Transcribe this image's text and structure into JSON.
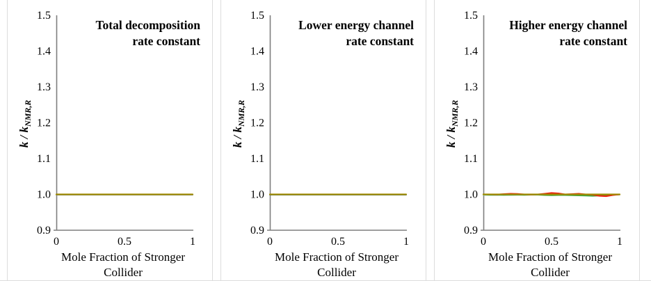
{
  "page": {
    "background": "#ffffff",
    "panel_border_color": "#dcdcdc",
    "axis_color": "#7f7f7f",
    "text_color": "#000000"
  },
  "chart_data": [
    {
      "type": "line",
      "title": "Total decomposition rate constant",
      "title_lines": [
        "Total decomposition",
        "rate constant"
      ],
      "ylabel": "k / k_NMR,R",
      "ylabel_main": "k / k",
      "ylabel_sub": "NMR,R",
      "xlabel": "Mole Fraction of Stronger Collider",
      "xlabel_lines": [
        "Mole Fraction of Stronger",
        "Collider"
      ],
      "ytick_labels": [
        "1.5",
        "1.4",
        "1.3",
        "1.2",
        "1.1",
        "1.0",
        "0.9"
      ],
      "xtick_labels": [
        "0",
        "0.5",
        "1"
      ],
      "xlim": [
        0,
        1
      ],
      "ylim": [
        0.9,
        1.5
      ],
      "grid": false,
      "legend": "none",
      "x": [
        0,
        0.05,
        0.1,
        0.15,
        0.2,
        0.25,
        0.3,
        0.35,
        0.4,
        0.45,
        0.5,
        0.55,
        0.6,
        0.65,
        0.7,
        0.75,
        0.8,
        0.85,
        0.9,
        0.95,
        1
      ],
      "series": [
        {
          "name": "gray-blue",
          "color": "#7b8fa8",
          "width": 2,
          "values": [
            0.999,
            0.999,
            0.999,
            0.999,
            0.999,
            0.999,
            0.999,
            0.999,
            0.999,
            0.999,
            0.999,
            0.999,
            0.999,
            0.999,
            0.999,
            0.999,
            0.999,
            0.999,
            0.999,
            0.999,
            0.999
          ]
        },
        {
          "name": "dark-yellow",
          "color": "#a18a00",
          "width": 2.2,
          "values": [
            1.0,
            1.0,
            1.0,
            1.0,
            1.0,
            1.0,
            1.0,
            1.0,
            1.0,
            1.0,
            1.0,
            1.0,
            1.0,
            1.0,
            1.0,
            1.0,
            1.0,
            1.0,
            1.0,
            1.0,
            1.0
          ]
        }
      ]
    },
    {
      "type": "line",
      "title": "Lower energy channel rate constant",
      "title_lines": [
        "Lower energy channel",
        "rate constant"
      ],
      "ylabel": "k / k_NMR,R",
      "ylabel_main": "k / k",
      "ylabel_sub": "NMR,R",
      "xlabel": "Mole Fraction of Stronger Collider",
      "xlabel_lines": [
        "Mole Fraction of Stronger",
        "Collider"
      ],
      "ytick_labels": [
        "1.5",
        "1.4",
        "1.3",
        "1.2",
        "1.1",
        "1.0",
        "0.9"
      ],
      "xtick_labels": [
        "0",
        "0.5",
        "1"
      ],
      "xlim": [
        0,
        1
      ],
      "ylim": [
        0.9,
        1.5
      ],
      "grid": false,
      "legend": "none",
      "x": [
        0,
        0.05,
        0.1,
        0.15,
        0.2,
        0.25,
        0.3,
        0.35,
        0.4,
        0.45,
        0.5,
        0.55,
        0.6,
        0.65,
        0.7,
        0.75,
        0.8,
        0.85,
        0.9,
        0.95,
        1
      ],
      "series": [
        {
          "name": "teal-blue",
          "color": "#4e7f95",
          "width": 2,
          "values": [
            0.999,
            0.999,
            0.999,
            0.999,
            0.999,
            0.999,
            0.999,
            0.999,
            0.999,
            0.999,
            0.999,
            0.999,
            0.999,
            0.999,
            0.999,
            0.999,
            0.999,
            0.999,
            0.999,
            0.999,
            0.999
          ]
        },
        {
          "name": "dark-yellow",
          "color": "#a18a00",
          "width": 2.2,
          "values": [
            1.0,
            1.0,
            1.0,
            1.0,
            1.0,
            1.0,
            1.0,
            1.0,
            1.0,
            1.0,
            1.0,
            1.0,
            1.0,
            1.0,
            1.0,
            1.0,
            1.0,
            1.0,
            1.0,
            1.0,
            1.0
          ]
        }
      ]
    },
    {
      "type": "line",
      "title": "Higher energy channel rate constant",
      "title_lines": [
        "Higher energy channel",
        "rate constant"
      ],
      "ylabel": "k / k_NMR,R",
      "ylabel_main": "k / k",
      "ylabel_sub": "NMR,R",
      "xlabel": "Mole Fraction of Stronger Collider",
      "xlabel_lines": [
        "Mole Fraction of Stronger",
        "Collider"
      ],
      "ytick_labels": [
        "1.5",
        "1.4",
        "1.3",
        "1.2",
        "1.1",
        "1.0",
        "0.9"
      ],
      "xtick_labels": [
        "0",
        "0.5",
        "1"
      ],
      "xlim": [
        0,
        1
      ],
      "ylim": [
        0.9,
        1.5
      ],
      "grid": false,
      "legend": "none",
      "x": [
        0,
        0.05,
        0.1,
        0.15,
        0.2,
        0.25,
        0.3,
        0.35,
        0.4,
        0.45,
        0.5,
        0.55,
        0.6,
        0.65,
        0.7,
        0.75,
        0.8,
        0.85,
        0.9,
        0.95,
        1
      ],
      "series": [
        {
          "name": "teal",
          "color": "#8fd0b8",
          "width": 2,
          "values": [
            0.9985,
            0.998,
            0.998,
            0.9985,
            0.998,
            0.9985,
            0.999,
            0.999,
            0.999,
            0.999,
            0.999,
            0.999,
            0.999,
            0.999,
            0.999,
            0.999,
            0.999,
            0.999,
            0.999,
            0.999,
            0.9995
          ]
        },
        {
          "name": "green",
          "color": "#3aa63c",
          "width": 2,
          "values": [
            1.0,
            0.999,
            0.999,
            0.9985,
            0.999,
            0.999,
            0.9985,
            0.999,
            0.999,
            0.998,
            0.9975,
            0.998,
            0.998,
            0.9975,
            0.997,
            0.9965,
            0.996,
            0.9965,
            0.997,
            0.999,
            1.0
          ]
        },
        {
          "name": "red",
          "color": "#ed1c0c",
          "width": 2,
          "values": [
            1.0,
            1.0,
            0.9995,
            1.001,
            1.002,
            1.0015,
            1.0,
            0.9995,
            1.0,
            1.002,
            1.004,
            1.003,
            1.0,
            1.001,
            1.002,
            1.0,
            0.999,
            0.996,
            0.995,
            0.998,
            1.0
          ]
        },
        {
          "name": "dark-yellow",
          "color": "#a18a00",
          "width": 2.2,
          "values": [
            1.0,
            1.0,
            1.0,
            1.0,
            1.0,
            1.0,
            1.0,
            1.0,
            1.0,
            1.0,
            1.0,
            1.0,
            1.0,
            1.0,
            1.0,
            1.0,
            1.0,
            1.0,
            1.0,
            1.0,
            1.0
          ]
        }
      ]
    }
  ]
}
